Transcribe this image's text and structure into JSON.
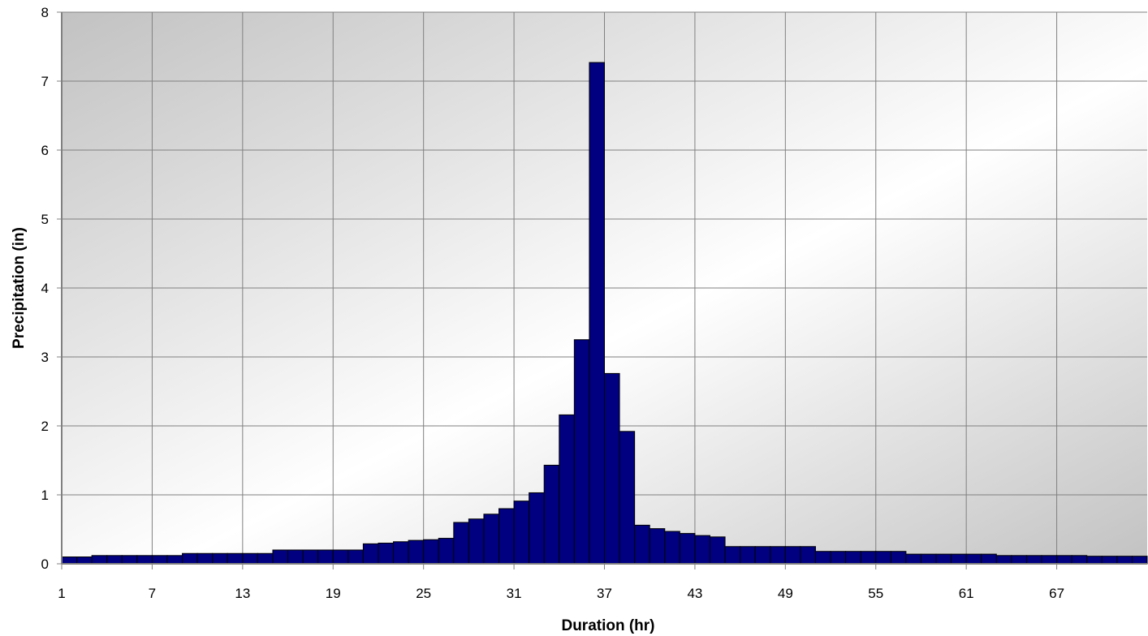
{
  "chart_data": {
    "type": "bar",
    "title": "",
    "xlabel": "Duration (hr)",
    "ylabel": "Precipitation (in)",
    "ylim": [
      0,
      8
    ],
    "yticks": [
      "0",
      "1",
      "2",
      "3",
      "4",
      "5",
      "6",
      "7",
      "8"
    ],
    "xticks": [
      "1",
      "7",
      "13",
      "19",
      "25",
      "31",
      "37",
      "43",
      "49",
      "55",
      "61",
      "67"
    ],
    "grid": true,
    "legend": "none",
    "bar_color": "#000080",
    "categories": [
      "1",
      "2",
      "3",
      "4",
      "5",
      "6",
      "7",
      "8",
      "9",
      "10",
      "11",
      "12",
      "13",
      "14",
      "15",
      "16",
      "17",
      "18",
      "19",
      "20",
      "21",
      "22",
      "23",
      "24",
      "25",
      "26",
      "27",
      "28",
      "29",
      "30",
      "31",
      "32",
      "33",
      "34",
      "35",
      "36",
      "37",
      "38",
      "39",
      "40",
      "41",
      "42",
      "43",
      "44",
      "45",
      "46",
      "47",
      "48",
      "49",
      "50",
      "51",
      "52",
      "53",
      "54",
      "55",
      "56",
      "57",
      "58",
      "59",
      "60",
      "61",
      "62",
      "63",
      "64",
      "65",
      "66",
      "67",
      "68",
      "69",
      "70",
      "71",
      "72"
    ],
    "values": [
      0.1,
      0.1,
      0.12,
      0.12,
      0.12,
      0.12,
      0.12,
      0.12,
      0.15,
      0.15,
      0.15,
      0.15,
      0.15,
      0.15,
      0.2,
      0.2,
      0.2,
      0.2,
      0.2,
      0.2,
      0.29,
      0.3,
      0.32,
      0.34,
      0.35,
      0.37,
      0.6,
      0.65,
      0.72,
      0.8,
      0.91,
      1.03,
      1.43,
      2.16,
      3.25,
      7.27,
      2.76,
      1.92,
      0.56,
      0.51,
      0.47,
      0.44,
      0.41,
      0.39,
      0.25,
      0.25,
      0.25,
      0.25,
      0.25,
      0.25,
      0.18,
      0.18,
      0.18,
      0.18,
      0.18,
      0.18,
      0.14,
      0.14,
      0.14,
      0.14,
      0.14,
      0.14,
      0.12,
      0.12,
      0.12,
      0.12,
      0.12,
      0.12,
      0.11,
      0.11,
      0.11,
      0.11
    ]
  }
}
